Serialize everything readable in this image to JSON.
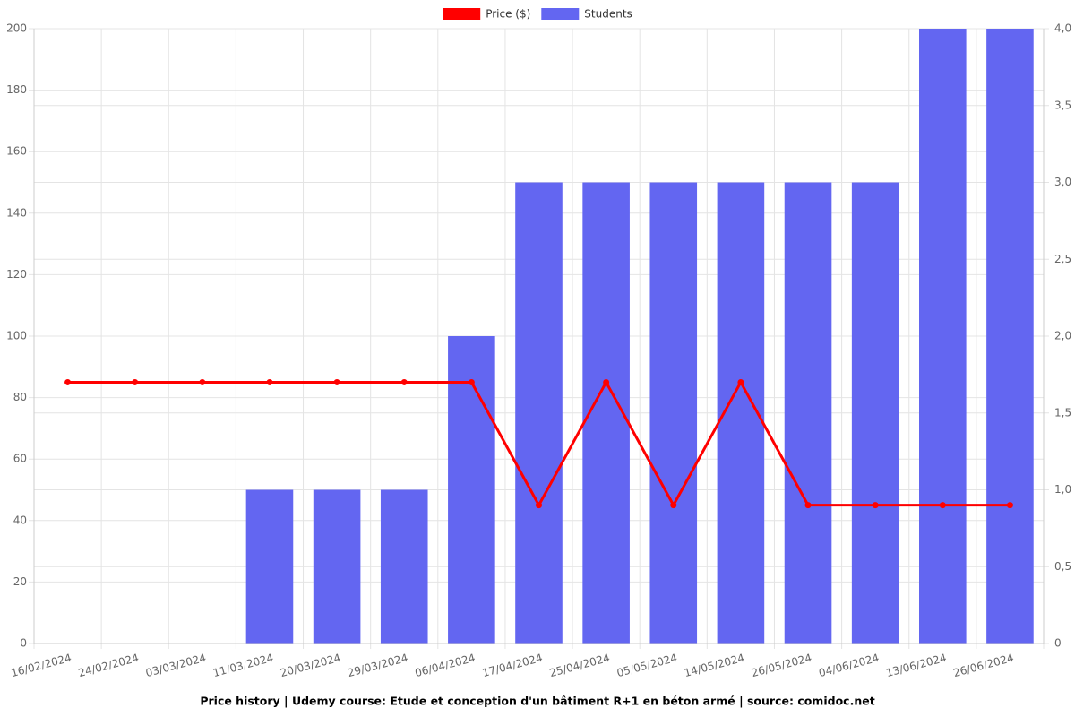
{
  "chart_data": {
    "type": "bar",
    "title": "Price history | Udemy course: Etude et conception d'un bâtiment R+1 en béton armé | source: comidoc.net",
    "categories": [
      "16/02/2024",
      "24/02/2024",
      "03/03/2024",
      "11/03/2024",
      "20/03/2024",
      "29/03/2024",
      "06/04/2024",
      "17/04/2024",
      "25/04/2024",
      "05/05/2024",
      "14/05/2024",
      "26/05/2024",
      "04/06/2024",
      "13/06/2024",
      "26/06/2024"
    ],
    "series": [
      {
        "name": "Price ($)",
        "type": "line",
        "color": "#ff0000",
        "axis": "y",
        "values": [
          85,
          85,
          85,
          85,
          85,
          85,
          85,
          45,
          85,
          45,
          85,
          45,
          45,
          45,
          45
        ]
      },
      {
        "name": "Students",
        "type": "bar",
        "color": "#6366f1",
        "axis": "y2",
        "values": [
          0,
          0,
          0,
          1,
          1,
          1,
          2,
          3,
          3,
          3,
          3,
          3,
          3,
          4,
          4
        ]
      }
    ],
    "ylim": [
      0,
      200
    ],
    "yticks": [
      0,
      20,
      40,
      60,
      80,
      100,
      120,
      140,
      160,
      180,
      200
    ],
    "y2lim": [
      0,
      4
    ],
    "y2ticks": [
      0,
      {
        "value": 0.5,
        "label": "0,5"
      },
      {
        "value": 1,
        "label": "1,0"
      },
      {
        "value": 1.5,
        "label": "1,5"
      },
      {
        "value": 2,
        "label": "2,0"
      },
      {
        "value": 2.5,
        "label": "2,5"
      },
      {
        "value": 3,
        "label": "3,0"
      },
      {
        "value": 3.5,
        "label": "3,5"
      },
      {
        "value": 4,
        "label": "4,0"
      }
    ],
    "grid": true,
    "legend": "top"
  }
}
